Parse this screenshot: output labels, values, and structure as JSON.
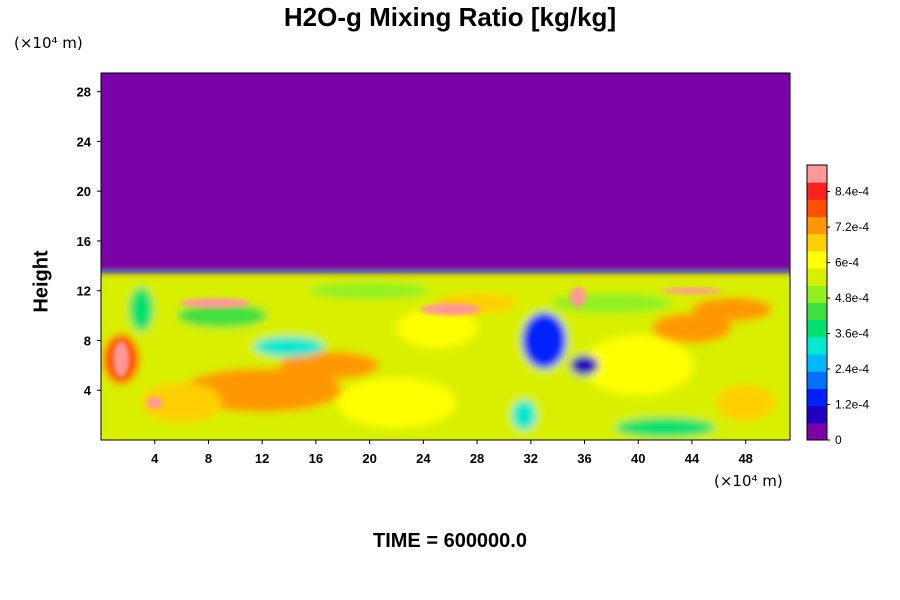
{
  "chart_data": {
    "type": "heatmap",
    "title": "H2O-g Mixing Ratio [kg/kg]",
    "ylabel": "Height",
    "xlabel": "",
    "y_unit": "(×10⁴ m)",
    "x_unit": "(×10⁴ m)",
    "x_ticks": [
      4,
      8,
      12,
      16,
      20,
      24,
      28,
      32,
      36,
      40,
      44,
      48
    ],
    "y_ticks": [
      4,
      8,
      12,
      16,
      20,
      24,
      28
    ],
    "xlim": [
      0,
      51.3
    ],
    "ylim": [
      0,
      29.5
    ],
    "colorbar": {
      "ticks": [
        "0",
        "1.2e-4",
        "2.4e-4",
        "3.6e-4",
        "4.8e-4",
        "6e-4",
        "7.2e-4",
        "8.4e-4"
      ],
      "range": [
        0,
        0.00093
      ],
      "colors": [
        "#7b00a8",
        "#2000c0",
        "#0020ff",
        "#0070ff",
        "#00b8ff",
        "#00e8d0",
        "#00e070",
        "#40e040",
        "#90f020",
        "#d8f000",
        "#ffff00",
        "#ffd000",
        "#ff9800",
        "#ff5000",
        "#ff2020",
        "#ff9898"
      ]
    },
    "regions": {
      "upper_value": 0,
      "moist_layer_top": 13.5,
      "typical_lower_value": 0.00062
    },
    "footer": "TIME = 600000.0"
  }
}
